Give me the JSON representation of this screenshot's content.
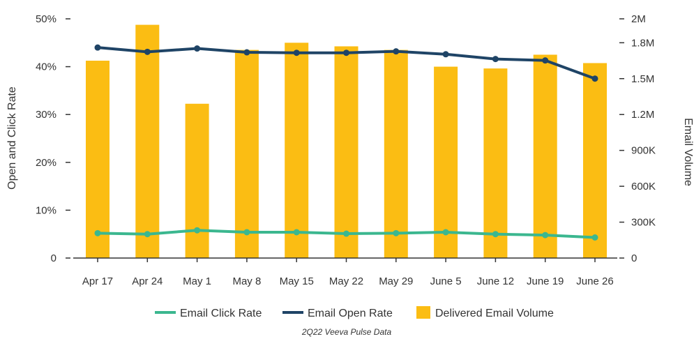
{
  "chart_data": {
    "type": "bar",
    "categories": [
      "Apr 17",
      "Apr 24",
      "May 1",
      "May 8",
      "May 15",
      "May 22",
      "May 29",
      "June 5",
      "June 12",
      "June 19",
      "June 26"
    ],
    "series": [
      {
        "name": "Delivered Email Volume",
        "type": "bar",
        "axis": "right",
        "color": "#fbbd13",
        "values": [
          1650000,
          1950000,
          1290000,
          1740000,
          1800000,
          1770000,
          1740000,
          1600000,
          1585000,
          1700000,
          1630000
        ]
      },
      {
        "name": "Email Open Rate",
        "type": "line",
        "axis": "left",
        "color": "#1f4466",
        "values": [
          44.0,
          43.1,
          43.8,
          43.0,
          42.9,
          42.9,
          43.2,
          42.6,
          41.6,
          41.3,
          37.5
        ]
      },
      {
        "name": "Email Click Rate",
        "type": "line",
        "axis": "left",
        "color": "#3bb78f",
        "values": [
          5.2,
          5.0,
          5.8,
          5.4,
          5.4,
          5.1,
          5.2,
          5.4,
          5.0,
          4.8,
          4.3
        ]
      }
    ],
    "left_axis": {
      "label": "Open and Click Rate",
      "range": [
        0,
        50
      ],
      "ticks": [
        0,
        10,
        20,
        30,
        40,
        50
      ],
      "tick_labels": [
        "0",
        "10%",
        "20%",
        "30%",
        "40%",
        "50%"
      ]
    },
    "right_axis": {
      "label": "Email Volume",
      "range": [
        0,
        2000000
      ],
      "ticks": [
        0,
        300000,
        600000,
        900000,
        1200000,
        1500000,
        1800000,
        2000000
      ],
      "tick_labels": [
        "0",
        "300K",
        "600K",
        "900K",
        "1.2M",
        "1.5M",
        "1.8M",
        "2M"
      ]
    },
    "legend": {
      "position": "bottom",
      "entries": [
        "Email Click Rate",
        "Email Open Rate",
        "Delivered Email Volume"
      ]
    },
    "source": "2Q22 Veeva Pulse Data"
  }
}
